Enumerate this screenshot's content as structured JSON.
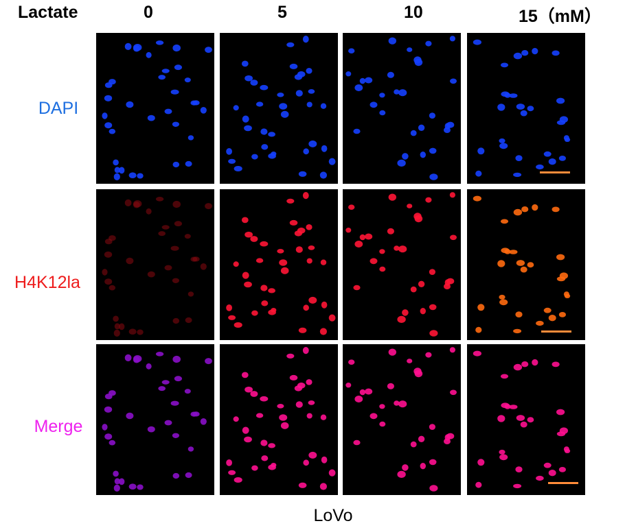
{
  "header": {
    "lactate_label": "Lactate",
    "concentrations": [
      "0",
      "5",
      "10",
      "15（mM）"
    ]
  },
  "rows": [
    {
      "label": "DAPI",
      "color": "#1e6fe0"
    },
    {
      "label": "H4K12la",
      "color": "#ee1c1c"
    },
    {
      "label": "Merge",
      "color": "#ee22ee"
    }
  ],
  "channel_colors": {
    "dapi": "#1540ff",
    "h4k12la_low": "#8a0a10",
    "h4k12la_mid": "#ff1535",
    "h4k12la_high": "#ff6a10",
    "merge_low": "#8a10c8",
    "merge_high": "#ff1090"
  },
  "scale_bar_color": "#ff8c3a",
  "footer": {
    "cell_line": "LoVo"
  }
}
